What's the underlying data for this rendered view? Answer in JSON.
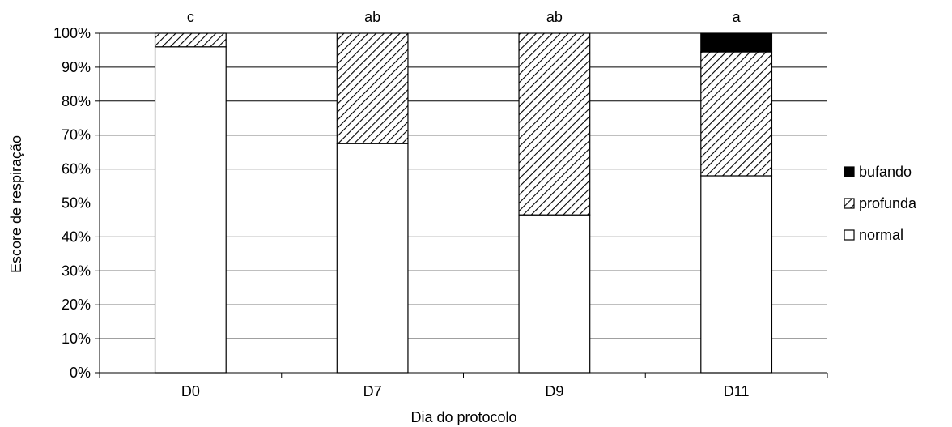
{
  "chart_data": {
    "type": "bar",
    "stacked": true,
    "percent": true,
    "categories": [
      "D0",
      "D7",
      "D9",
      "D11"
    ],
    "significance_letters": [
      "c",
      "ab",
      "ab",
      "a"
    ],
    "series": [
      {
        "name": "normal",
        "values": [
          96,
          67.5,
          46.5,
          58
        ],
        "pattern": "white"
      },
      {
        "name": "profunda",
        "values": [
          4,
          32.5,
          53.5,
          36.5
        ],
        "pattern": "diagonal-hatch"
      },
      {
        "name": "bufando",
        "values": [
          0,
          0,
          0,
          5.5
        ],
        "pattern": "solid-black"
      }
    ],
    "xlabel": "Dia do protocolo",
    "ylabel": "Escore de respiração",
    "ylim": [
      0,
      100
    ],
    "yticks": [
      "0%",
      "10%",
      "20%",
      "30%",
      "40%",
      "50%",
      "60%",
      "70%",
      "80%",
      "90%",
      "100%"
    ],
    "grid": "horizontal",
    "legend_position": "right",
    "legend_order": [
      "bufando",
      "profunda",
      "normal"
    ],
    "colors": {
      "fill_normal": "#ffffff",
      "hatch": "#000000",
      "fill_bufando": "#000000",
      "stroke": "#000000",
      "grid": "#000000"
    }
  }
}
